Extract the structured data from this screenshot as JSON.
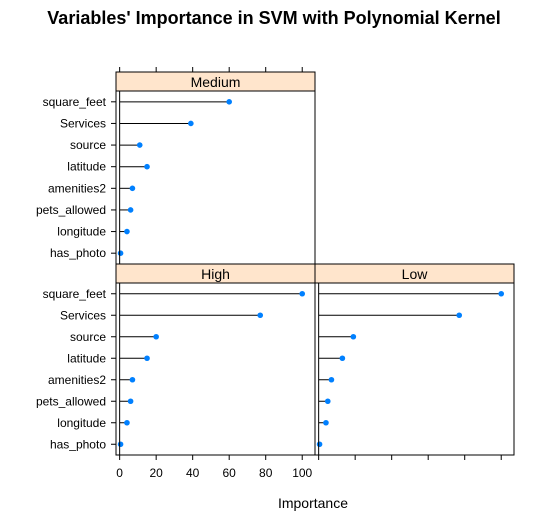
{
  "chart_data": {
    "type": "dotplot",
    "title": "Variables' Importance in SVM with Polynomial Kernel",
    "xlabel": "Importance",
    "ylabel": "",
    "xlim": [
      -2,
      107
    ],
    "x_ticks": [
      0,
      20,
      40,
      60,
      80,
      100
    ],
    "categories": [
      "square_feet",
      "Services",
      "source",
      "latitude",
      "amenities2",
      "pets_allowed",
      "longitude",
      "has_photo"
    ],
    "panels": [
      {
        "name": "Medium",
        "values": [
          60,
          39,
          11,
          15,
          7,
          6,
          4,
          0.5
        ]
      },
      {
        "name": "High",
        "values": [
          100,
          77,
          20,
          15,
          7,
          6,
          4,
          0.5
        ]
      },
      {
        "name": "Low",
        "values": [
          100,
          77,
          19,
          13,
          7,
          5,
          4,
          0.5
        ]
      }
    ],
    "colors": {
      "point": "#0080ff",
      "strip": "#ffe5cc",
      "line": "#000000"
    }
  }
}
